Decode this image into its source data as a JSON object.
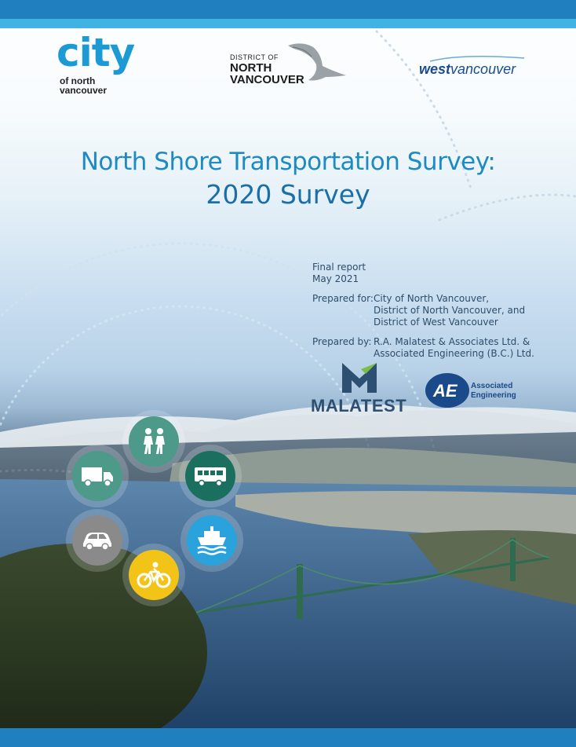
{
  "logos": {
    "city": {
      "big": "city",
      "of_north": "of north",
      "vancouver": "vancouver"
    },
    "district": {
      "line1": "DISTRICT OF",
      "line2": "NORTH",
      "line3": "VANCOUVER"
    },
    "west": {
      "part1": "west",
      "part2": "vancouver"
    },
    "malatest": "MALATEST",
    "ae": {
      "line1": "Associated",
      "line2": "Engineering"
    }
  },
  "title": {
    "line1": "North Shore Transportation Survey:",
    "line2": "2020 Survey"
  },
  "report": {
    "type": "Final report",
    "date": "May 2021",
    "prepared_for_label": "Prepared for:",
    "prepared_for_lines": [
      "City of North Vancouver,",
      "District of North Vancouver, and",
      "District of West Vancouver"
    ],
    "prepared_by_label": "Prepared by:",
    "prepared_by_lines": [
      "R.A. Malatest & Associates Ltd. &",
      "Associated Engineering (B.C.) Ltd."
    ]
  },
  "modes": [
    {
      "name": "walking-icon",
      "color": "#4e9a8a"
    },
    {
      "name": "truck-icon",
      "color": "#4e9a8a"
    },
    {
      "name": "bus-icon",
      "color": "#1a6f5f"
    },
    {
      "name": "car-icon",
      "color": "#8a8a8a"
    },
    {
      "name": "ferry-icon",
      "color": "#2aa3dc"
    },
    {
      "name": "bicycle-icon",
      "color": "#f2c418"
    }
  ],
  "colors": {
    "brand_blue": "#1f7fbf",
    "accent_cyan": "#3fb3e3",
    "title_blue": "#1d8ac4"
  }
}
